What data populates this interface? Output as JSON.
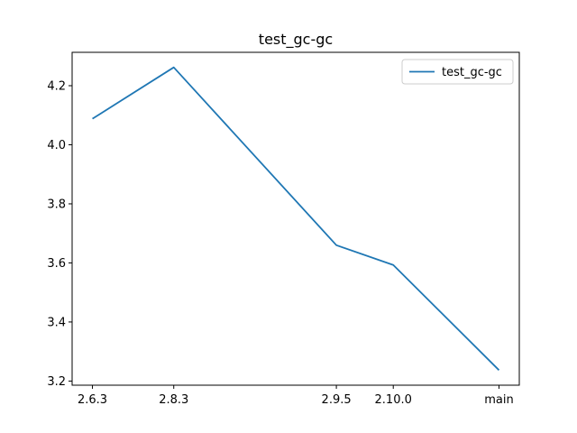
{
  "chart_data": {
    "type": "line",
    "title": "test_gc-gc",
    "xlabel": "",
    "ylabel": "",
    "categories": [
      "2.6.3",
      "2.8.3",
      "2.9.5",
      "2.10.0",
      "main"
    ],
    "x_positions": [
      0,
      1,
      3,
      3.7,
      5
    ],
    "series": [
      {
        "name": "test_gc-gc",
        "color": "#1f77b4",
        "values": [
          4.088,
          4.262,
          3.66,
          3.593,
          3.237
        ]
      }
    ],
    "yticks": [
      3.2,
      3.4,
      3.6,
      3.8,
      4.0,
      4.2
    ],
    "ytick_labels": [
      "3.2",
      "3.4",
      "3.6",
      "3.8",
      "4.0",
      "4.2"
    ],
    "ylim": [
      3.186,
      4.313
    ],
    "xlim": [
      -0.25,
      5.25
    ],
    "grid": false,
    "legend": "top-right"
  }
}
